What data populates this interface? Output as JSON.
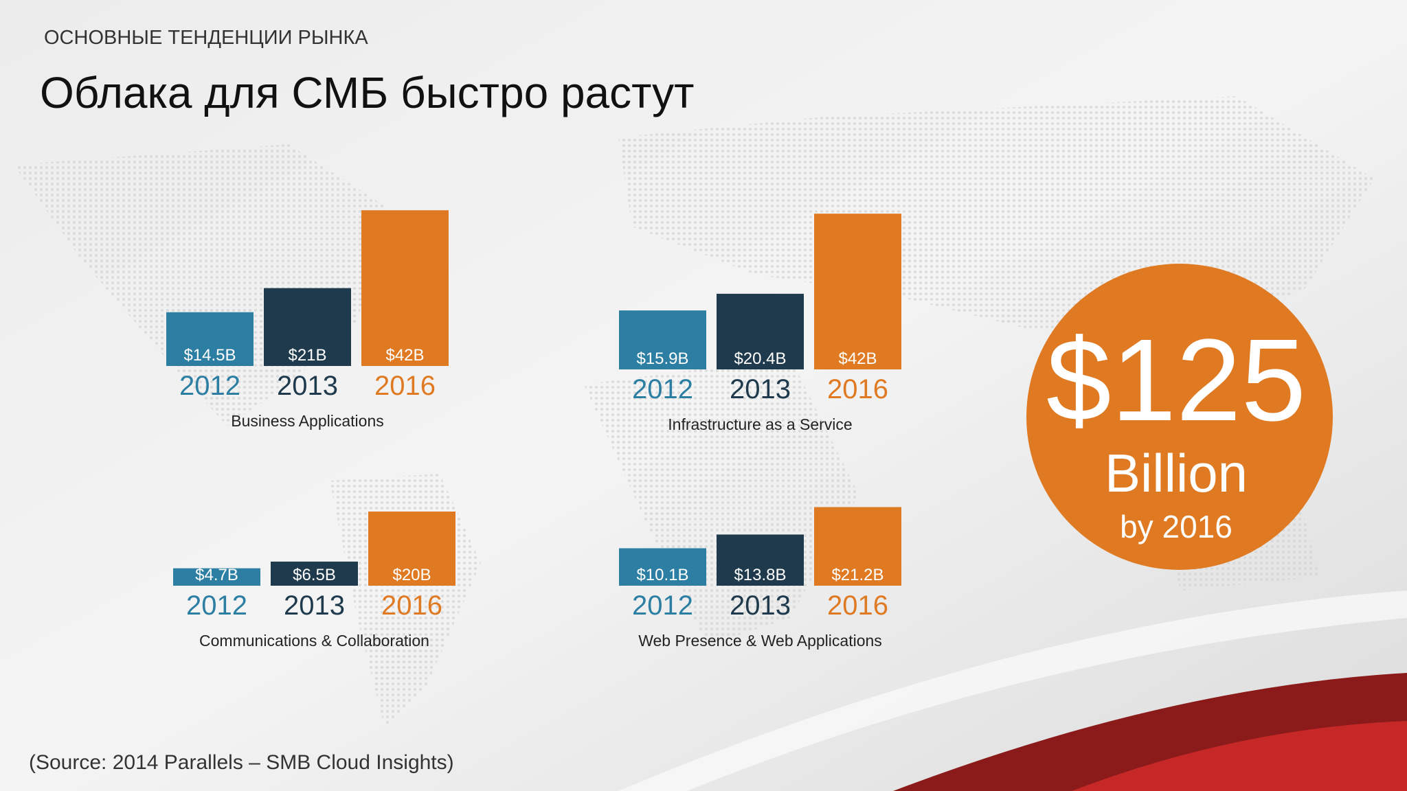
{
  "header": "ОСНОВНЫЕ ТЕНДЕНЦИИ РЫНКА",
  "title": "Облака для СМБ быстро растут",
  "chart_data": [
    {
      "type": "bar",
      "title": "Business Applications",
      "categories": [
        "2012",
        "2013",
        "2016"
      ],
      "values": [
        14.5,
        21,
        42
      ],
      "value_labels": [
        "$14.5B",
        "$21B",
        "$42B"
      ],
      "colors": [
        "#2c7ea3",
        "#1e3a4c",
        "#e07a22"
      ]
    },
    {
      "type": "bar",
      "title": "Infrastructure as a Service",
      "categories": [
        "2012",
        "2013",
        "2016"
      ],
      "values": [
        15.9,
        20.4,
        42
      ],
      "value_labels": [
        "$15.9B",
        "$20.4B",
        "$42B"
      ],
      "colors": [
        "#2c7ea3",
        "#1e3a4c",
        "#e07a22"
      ]
    },
    {
      "type": "bar",
      "title": "Communications & Collaboration",
      "categories": [
        "2012",
        "2013",
        "2016"
      ],
      "values": [
        4.7,
        6.5,
        20
      ],
      "value_labels": [
        "$4.7B",
        "$6.5B",
        "$20B"
      ],
      "colors": [
        "#2c7ea3",
        "#1e3a4c",
        "#e07a22"
      ]
    },
    {
      "type": "bar",
      "title": "Web Presence & Web Applications",
      "categories": [
        "2012",
        "2013",
        "2016"
      ],
      "values": [
        10.1,
        13.8,
        21.2
      ],
      "value_labels": [
        "$10.1B",
        "$13.8B",
        "$21.2B"
      ],
      "colors": [
        "#2c7ea3",
        "#1e3a4c",
        "#e07a22"
      ]
    }
  ],
  "callout": {
    "amount": "$125",
    "unit": "Billion",
    "note": "by 2016"
  },
  "source": "(Source: 2014 Parallels – SMB Cloud Insights)"
}
